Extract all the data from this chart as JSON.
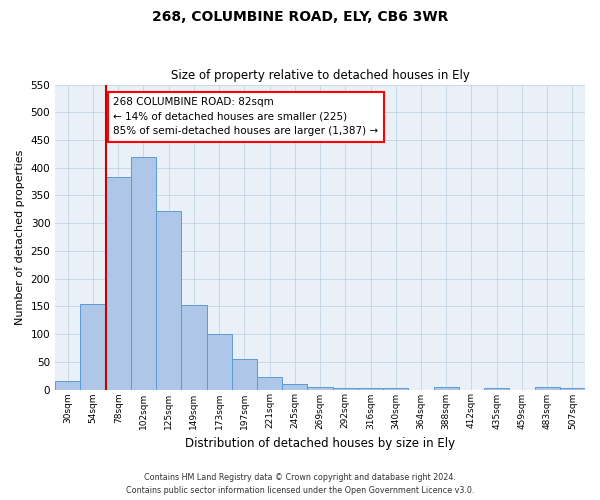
{
  "title": "268, COLUMBINE ROAD, ELY, CB6 3WR",
  "subtitle": "Size of property relative to detached houses in Ely",
  "xlabel": "Distribution of detached houses by size in Ely",
  "ylabel": "Number of detached properties",
  "bar_labels": [
    "30sqm",
    "54sqm",
    "78sqm",
    "102sqm",
    "125sqm",
    "149sqm",
    "173sqm",
    "197sqm",
    "221sqm",
    "245sqm",
    "269sqm",
    "292sqm",
    "316sqm",
    "340sqm",
    "364sqm",
    "388sqm",
    "412sqm",
    "435sqm",
    "459sqm",
    "483sqm",
    "507sqm"
  ],
  "bar_values": [
    15,
    155,
    383,
    420,
    322,
    153,
    100,
    55,
    22,
    10,
    5,
    3,
    2,
    2,
    0,
    4,
    0,
    3,
    0,
    4,
    3
  ],
  "bar_color": "#aec6e8",
  "bar_edge_color": "#5b9bd5",
  "background_color": "#eaf0f8",
  "ylim": [
    0,
    550
  ],
  "yticks": [
    0,
    50,
    100,
    150,
    200,
    250,
    300,
    350,
    400,
    450,
    500,
    550
  ],
  "vline_x_index": 2,
  "vline_color": "#cc0000",
  "annotation_title": "268 COLUMBINE ROAD: 82sqm",
  "annotation_line1": "← 14% of detached houses are smaller (225)",
  "annotation_line2": "85% of semi-detached houses are larger (1,387) →",
  "footer_line1": "Contains HM Land Registry data © Crown copyright and database right 2024.",
  "footer_line2": "Contains public sector information licensed under the Open Government Licence v3.0."
}
